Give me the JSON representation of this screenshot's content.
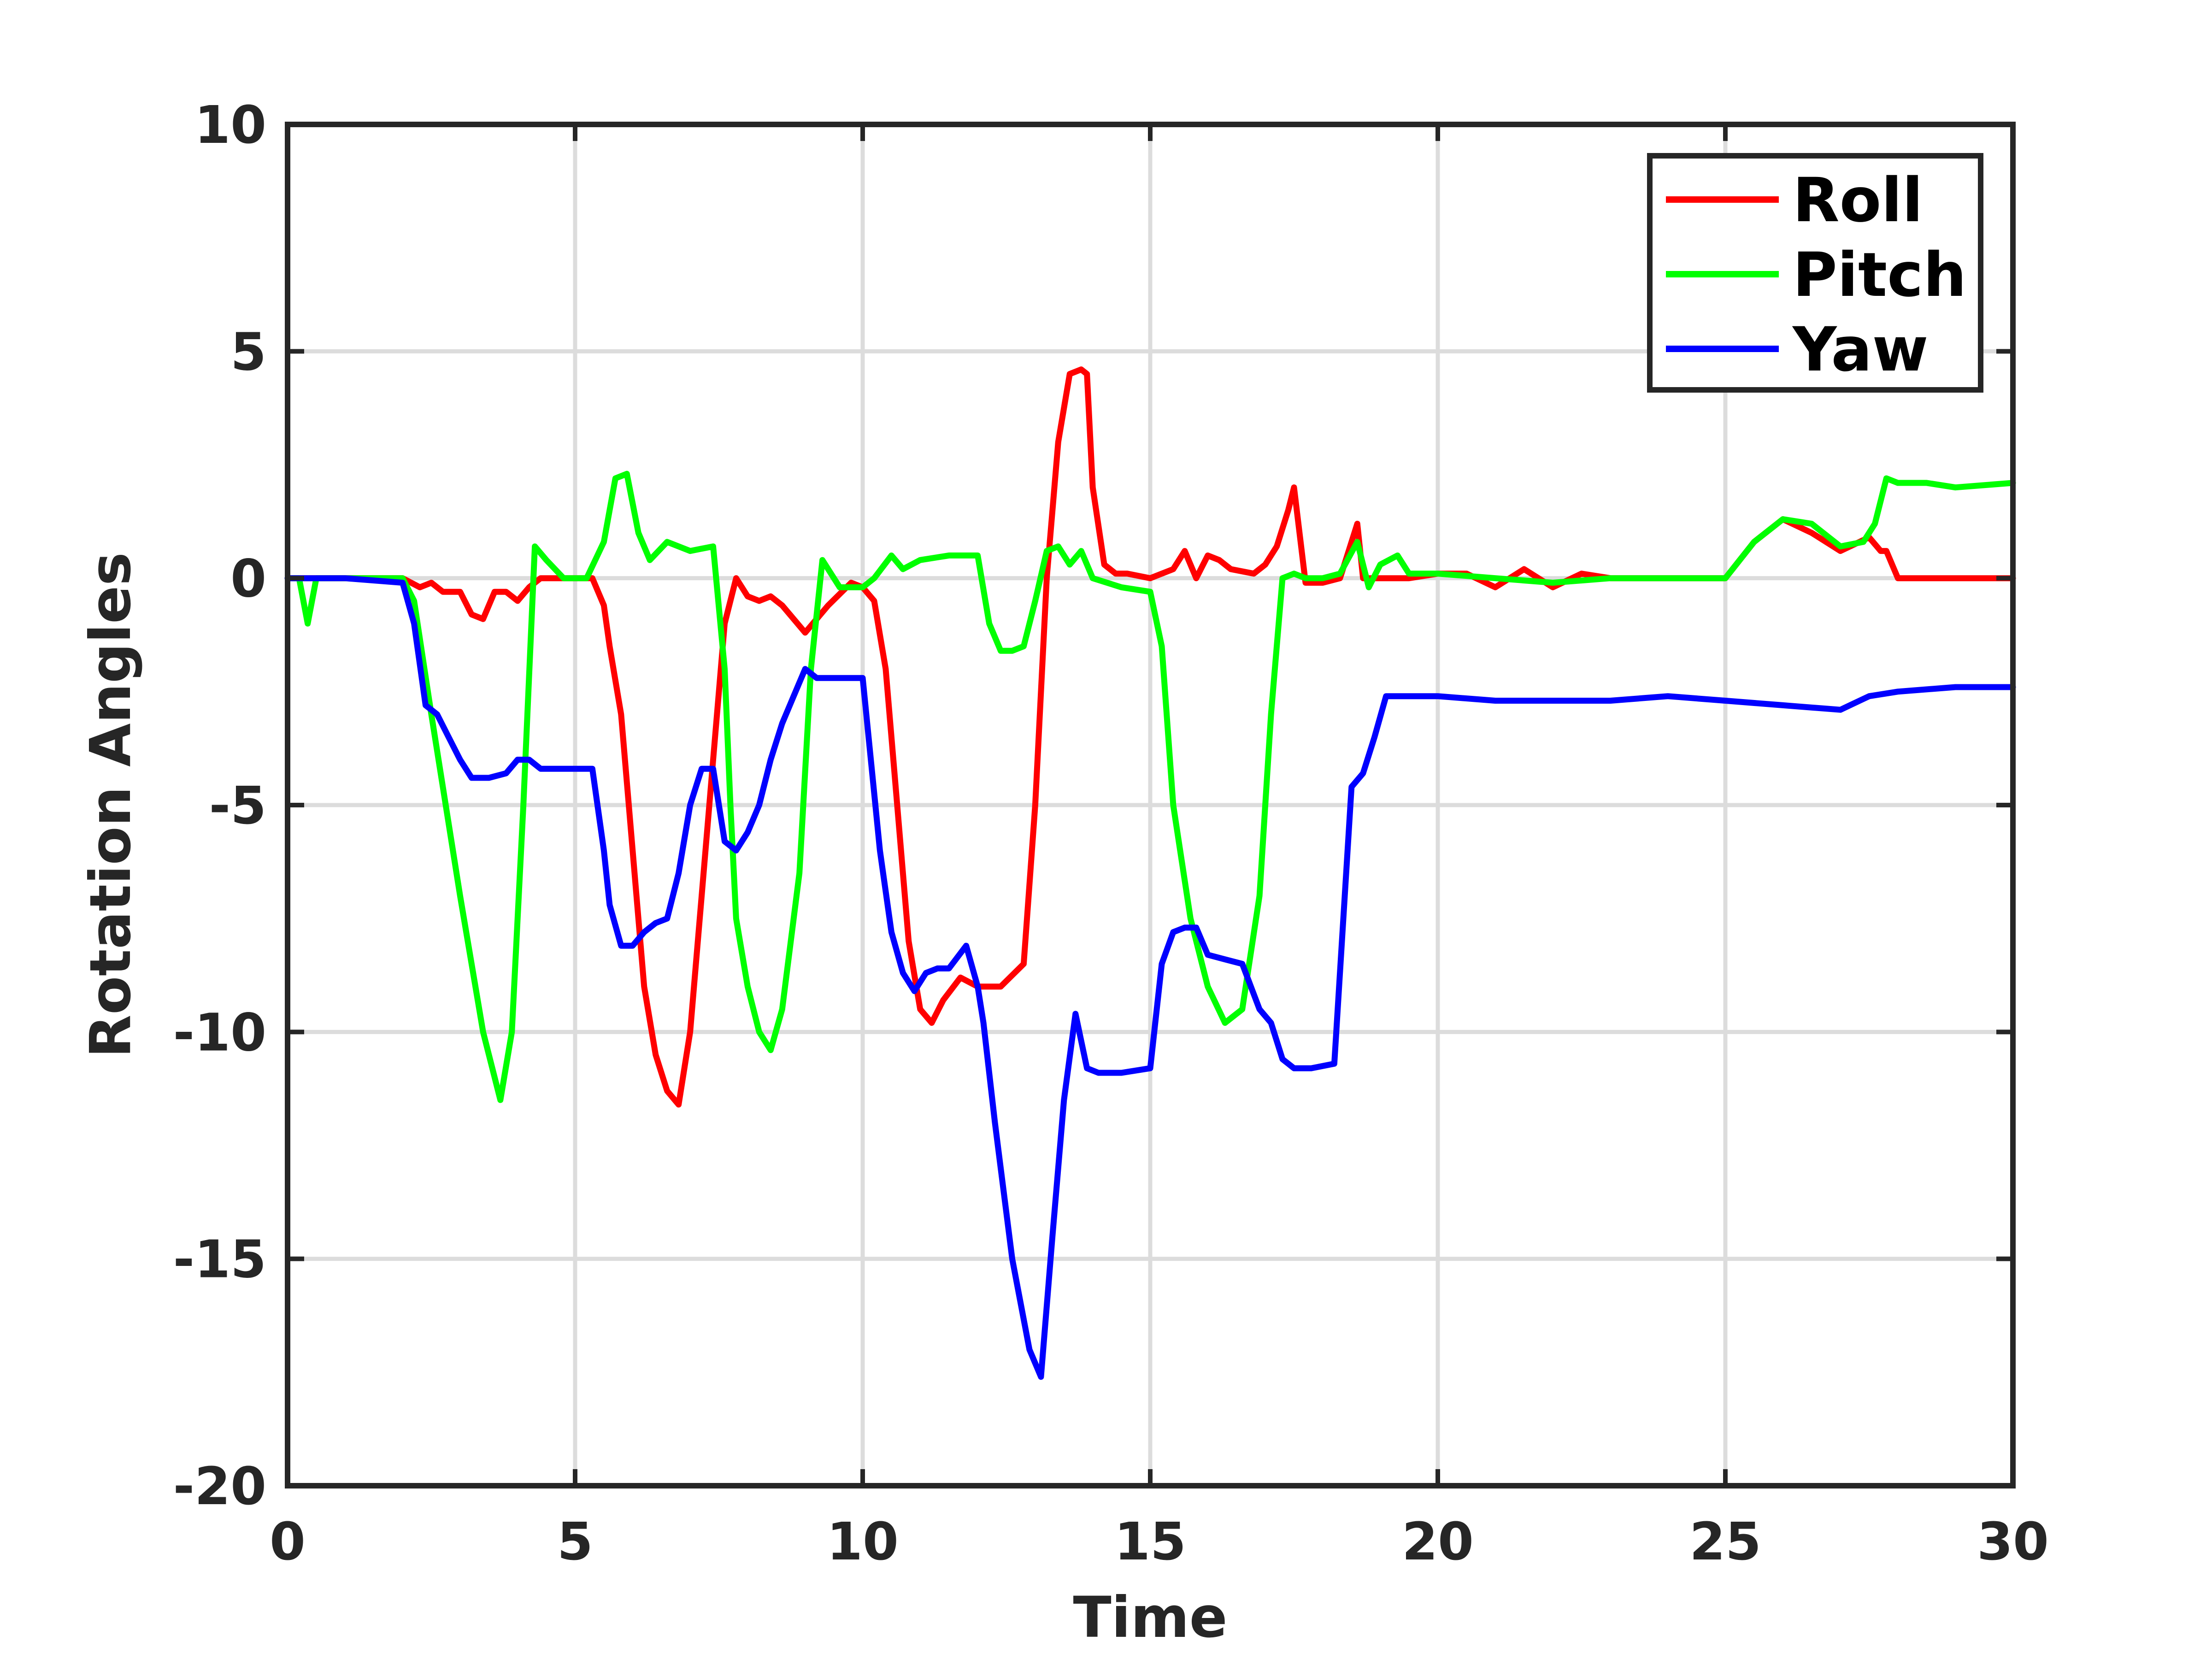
{
  "chart_data": {
    "type": "line",
    "title": "",
    "xlabel": "Time",
    "ylabel": "Rotation Angles",
    "xlim": [
      0,
      30
    ],
    "ylim": [
      -20,
      10
    ],
    "xticks": [
      0,
      5,
      10,
      15,
      20,
      25,
      30
    ],
    "yticks": [
      -20,
      -15,
      -10,
      -5,
      0,
      5,
      10
    ],
    "xtick_labels": [
      "0",
      "5",
      "10",
      "15",
      "20",
      "25",
      "30"
    ],
    "ytick_labels": [
      "-20",
      "-15",
      "-10",
      "-5",
      "0",
      "5",
      "10"
    ],
    "grid": true,
    "legend_position": "top-right",
    "series": [
      {
        "name": "Roll",
        "color": "#ff0000",
        "x": [
          0,
          0.5,
          1,
          1.5,
          2,
          2.3,
          2.5,
          2.7,
          3,
          3.2,
          3.4,
          3.6,
          3.8,
          4,
          4.2,
          4.4,
          4.6,
          5,
          5.3,
          5.5,
          5.6,
          5.8,
          6,
          6.2,
          6.4,
          6.6,
          6.8,
          7,
          7.2,
          7.4,
          7.6,
          7.8,
          8,
          8.2,
          8.4,
          8.6,
          9,
          9.4,
          9.8,
          10,
          10.2,
          10.4,
          10.6,
          10.8,
          11,
          11.2,
          11.4,
          11.7,
          12,
          12.4,
          12.8,
          13,
          13.2,
          13.4,
          13.6,
          13.8,
          13.9,
          14,
          14.2,
          14.4,
          14.6,
          15,
          15.4,
          15.6,
          15.8,
          16,
          16.2,
          16.4,
          16.8,
          17,
          17.2,
          17.4,
          17.5,
          17.7,
          18,
          18.3,
          18.6,
          18.7,
          19,
          19.5,
          20,
          20.5,
          21,
          21.5,
          22,
          22.5,
          23,
          24,
          25,
          25.5,
          26,
          26.5,
          27,
          27.5,
          27.7,
          27.8,
          28,
          29,
          30
        ],
        "values": [
          0,
          0,
          0,
          0,
          0,
          -0.2,
          -0.1,
          -0.3,
          -0.3,
          -0.8,
          -0.9,
          -0.3,
          -0.3,
          -0.5,
          -0.2,
          0,
          0,
          0,
          0,
          -0.6,
          -1.5,
          -3,
          -6,
          -9,
          -10.5,
          -11.3,
          -11.6,
          -10,
          -7,
          -4,
          -1,
          0,
          -0.4,
          -0.5,
          -0.4,
          -0.6,
          -1.2,
          -0.6,
          -0.1,
          -0.2,
          -0.5,
          -2,
          -5,
          -8,
          -9.5,
          -9.8,
          -9.3,
          -8.8,
          -9,
          -9,
          -8.5,
          -5,
          0,
          3,
          4.5,
          4.6,
          4.5,
          2,
          0.3,
          0.1,
          0.1,
          0,
          0.2,
          0.6,
          0,
          0.5,
          0.4,
          0.2,
          0.1,
          0.3,
          0.7,
          1.5,
          2,
          -0.1,
          -0.1,
          0,
          1.2,
          0,
          0,
          0,
          0.1,
          0.1,
          -0.2,
          0.2,
          -0.2,
          0.1,
          0,
          0,
          0,
          0.8,
          1.3,
          1,
          0.6,
          0.9,
          0.6,
          0.6,
          0,
          0,
          0
        ]
      },
      {
        "name": "Pitch",
        "color": "#00ff00",
        "x": [
          0,
          0.2,
          0.35,
          0.5,
          1,
          1.5,
          2,
          2.2,
          2.5,
          3,
          3.4,
          3.7,
          3.9,
          4.1,
          4.3,
          4.5,
          4.8,
          5.2,
          5.5,
          5.7,
          5.9,
          6.1,
          6.3,
          6.6,
          7,
          7.4,
          7.6,
          7.7,
          7.8,
          8,
          8.2,
          8.4,
          8.6,
          8.9,
          9.1,
          9.3,
          9.6,
          10,
          10.2,
          10.5,
          10.7,
          11,
          11.5,
          12,
          12.2,
          12.4,
          12.6,
          12.8,
          13,
          13.2,
          13.4,
          13.6,
          13.8,
          14,
          14.5,
          15,
          15.2,
          15.4,
          15.7,
          16,
          16.3,
          16.6,
          16.9,
          17.1,
          17.3,
          17.5,
          17.7,
          18,
          18.3,
          18.6,
          18.8,
          19,
          19.3,
          19.5,
          20,
          21,
          22,
          23,
          24,
          25,
          25.5,
          26,
          26.5,
          27,
          27.4,
          27.6,
          27.8,
          28,
          28.5,
          29,
          30
        ],
        "values": [
          0,
          0,
          -1,
          0,
          0,
          0,
          0,
          -0.5,
          -3,
          -7,
          -10,
          -11.5,
          -10,
          -5,
          0.7,
          0.4,
          0,
          0,
          0.8,
          2.2,
          2.3,
          1,
          0.4,
          0.8,
          0.6,
          0.7,
          -2,
          -5,
          -7.5,
          -9,
          -10,
          -10.4,
          -9.5,
          -6.5,
          -2,
          0.4,
          -0.2,
          -0.2,
          0,
          0.5,
          0.2,
          0.4,
          0.5,
          0.5,
          -1,
          -1.6,
          -1.6,
          -1.5,
          -0.5,
          0.6,
          0.7,
          0.3,
          0.6,
          0,
          -0.2,
          -0.3,
          -1.5,
          -5,
          -7.5,
          -9,
          -9.8,
          -9.5,
          -7,
          -3,
          0,
          0.1,
          0,
          0,
          0.1,
          0.8,
          -0.2,
          0.3,
          0.5,
          0.1,
          0.1,
          0,
          -0.1,
          0,
          0,
          0,
          0.8,
          1.3,
          1.2,
          0.7,
          0.8,
          1.2,
          2.2,
          2.1,
          2.1,
          2,
          2.1
        ]
      },
      {
        "name": "Yaw",
        "color": "#0000ff",
        "x": [
          0,
          1,
          2,
          2.2,
          2.4,
          2.6,
          2.8,
          3,
          3.2,
          3.5,
          3.8,
          4,
          4.2,
          4.4,
          4.6,
          5,
          5.3,
          5.5,
          5.6,
          5.8,
          6,
          6.2,
          6.4,
          6.6,
          6.8,
          7,
          7.2,
          7.4,
          7.6,
          7.8,
          8,
          8.2,
          8.4,
          8.6,
          8.8,
          9,
          9.2,
          9.4,
          9.6,
          10,
          10.3,
          10.5,
          10.7,
          10.9,
          11.1,
          11.3,
          11.5,
          11.8,
          12,
          12.1,
          12.3,
          12.6,
          12.9,
          13.1,
          13.3,
          13.5,
          13.7,
          13.9,
          14.1,
          14.3,
          14.5,
          15,
          15.2,
          15.4,
          15.6,
          15.8,
          16,
          16.3,
          16.6,
          16.9,
          17.1,
          17.3,
          17.5,
          17.8,
          18.2,
          18.5,
          18.7,
          18.9,
          19.1,
          19.4,
          19.6,
          20,
          21,
          22,
          23,
          24,
          25,
          26,
          27,
          27.5,
          28,
          29,
          30
        ],
        "values": [
          0,
          0,
          -0.1,
          -1,
          -2.8,
          -3,
          -3.5,
          -4,
          -4.4,
          -4.4,
          -4.3,
          -4,
          -4,
          -4.2,
          -4.2,
          -4.2,
          -4.2,
          -6,
          -7.2,
          -8.1,
          -8.1,
          -7.8,
          -7.6,
          -7.5,
          -6.5,
          -5,
          -4.2,
          -4.2,
          -5.8,
          -6,
          -5.6,
          -5,
          -4,
          -3.2,
          -2.6,
          -2,
          -2.2,
          -2.2,
          -2.2,
          -2.2,
          -6,
          -7.8,
          -8.7,
          -9.1,
          -8.7,
          -8.6,
          -8.6,
          -8.1,
          -9,
          -9.8,
          -12,
          -15,
          -17,
          -17.6,
          -14.5,
          -11.5,
          -9.6,
          -10.8,
          -10.9,
          -10.9,
          -10.9,
          -10.8,
          -8.5,
          -7.8,
          -7.7,
          -7.7,
          -8.3,
          -8.4,
          -8.5,
          -9.5,
          -9.8,
          -10.6,
          -10.8,
          -10.8,
          -10.7,
          -4.6,
          -4.3,
          -3.5,
          -2.6,
          -2.6,
          -2.6,
          -2.6,
          -2.7,
          -2.7,
          -2.7,
          -2.6,
          -2.7,
          -2.8,
          -2.9,
          -2.6,
          -2.5,
          -2.4,
          -2.4
        ]
      }
    ]
  }
}
